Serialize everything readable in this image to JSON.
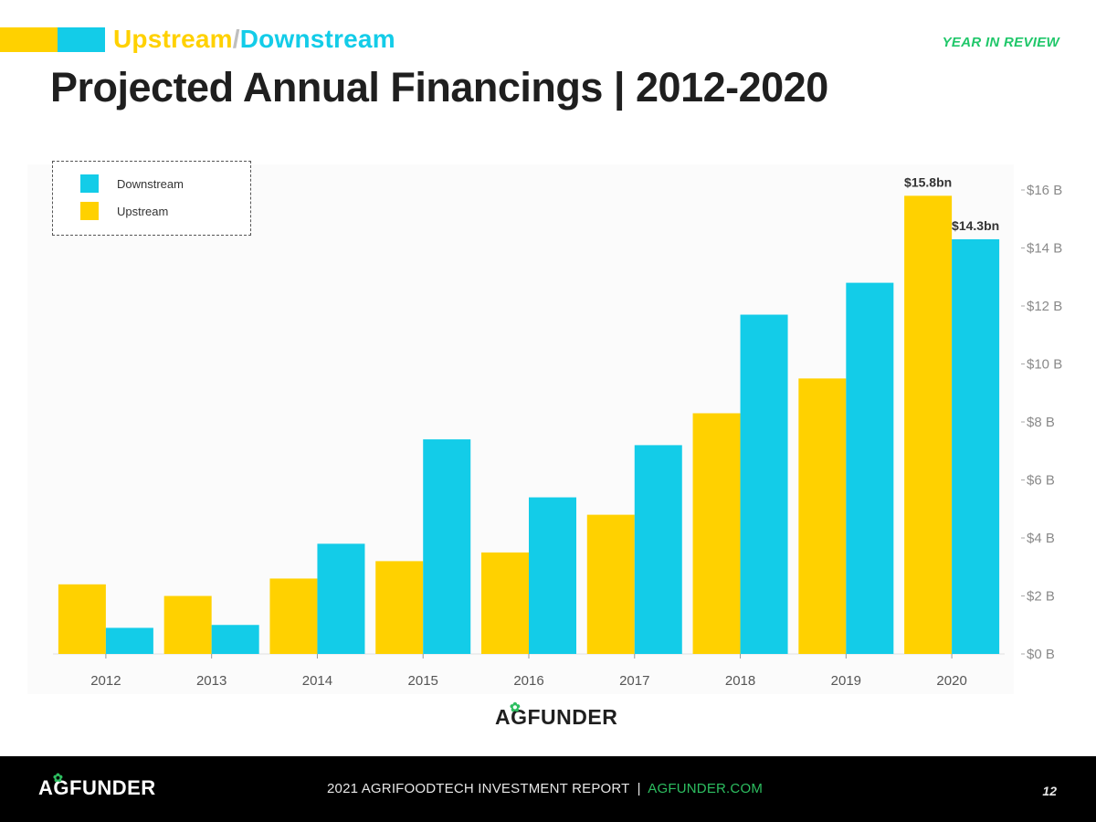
{
  "header": {
    "section_upstream": "Upstream",
    "section_separator": "/",
    "section_downstream": "Downstream",
    "tag": "YEAR IN REVIEW",
    "title": "Projected Annual Financings | 2012-2020"
  },
  "colors": {
    "upstream": "#FFD100",
    "downstream": "#13CCE8",
    "accent_green": "#20C76A"
  },
  "legend": {
    "items": [
      {
        "label": "Downstream",
        "color": "#13CCE8"
      },
      {
        "label": "Upstream",
        "color": "#FFD100"
      }
    ]
  },
  "chart_data": {
    "type": "bar",
    "categories": [
      "2012",
      "2013",
      "2014",
      "2015",
      "2016",
      "2017",
      "2018",
      "2019",
      "2020"
    ],
    "series": [
      {
        "name": "Upstream",
        "values": [
          2.4,
          2.0,
          2.6,
          3.2,
          3.5,
          4.8,
          8.3,
          9.5,
          15.8
        ]
      },
      {
        "name": "Downstream",
        "values": [
          0.9,
          1.0,
          3.8,
          7.4,
          5.4,
          7.2,
          11.7,
          12.8,
          14.3
        ]
      }
    ],
    "ylim": [
      0,
      16
    ],
    "yticks": [
      {
        "value": 0,
        "label": "$0 B"
      },
      {
        "value": 2,
        "label": "$2 B"
      },
      {
        "value": 4,
        "label": "$4 B"
      },
      {
        "value": 6,
        "label": "$6 B"
      },
      {
        "value": 8,
        "label": "$8 B"
      },
      {
        "value": 10,
        "label": "$10 B"
      },
      {
        "value": 12,
        "label": "$12 B"
      },
      {
        "value": 14,
        "label": "$14 B"
      },
      {
        "value": 16,
        "label": "$16 B"
      }
    ],
    "annotations": [
      {
        "category": "2020",
        "series": "Upstream",
        "label": "$15.8bn"
      },
      {
        "category": "2020",
        "series": "Downstream",
        "label": "$14.3bn"
      }
    ],
    "legend_position": "top-left",
    "y_axis_side": "right",
    "grid": false
  },
  "brand": {
    "logo_text": "AGFUNDER",
    "footer_report": "2021 AGRIFOODTECH INVESTMENT REPORT",
    "footer_pipe": "|",
    "footer_link": "AGFUNDER.COM",
    "page_number": "12"
  }
}
